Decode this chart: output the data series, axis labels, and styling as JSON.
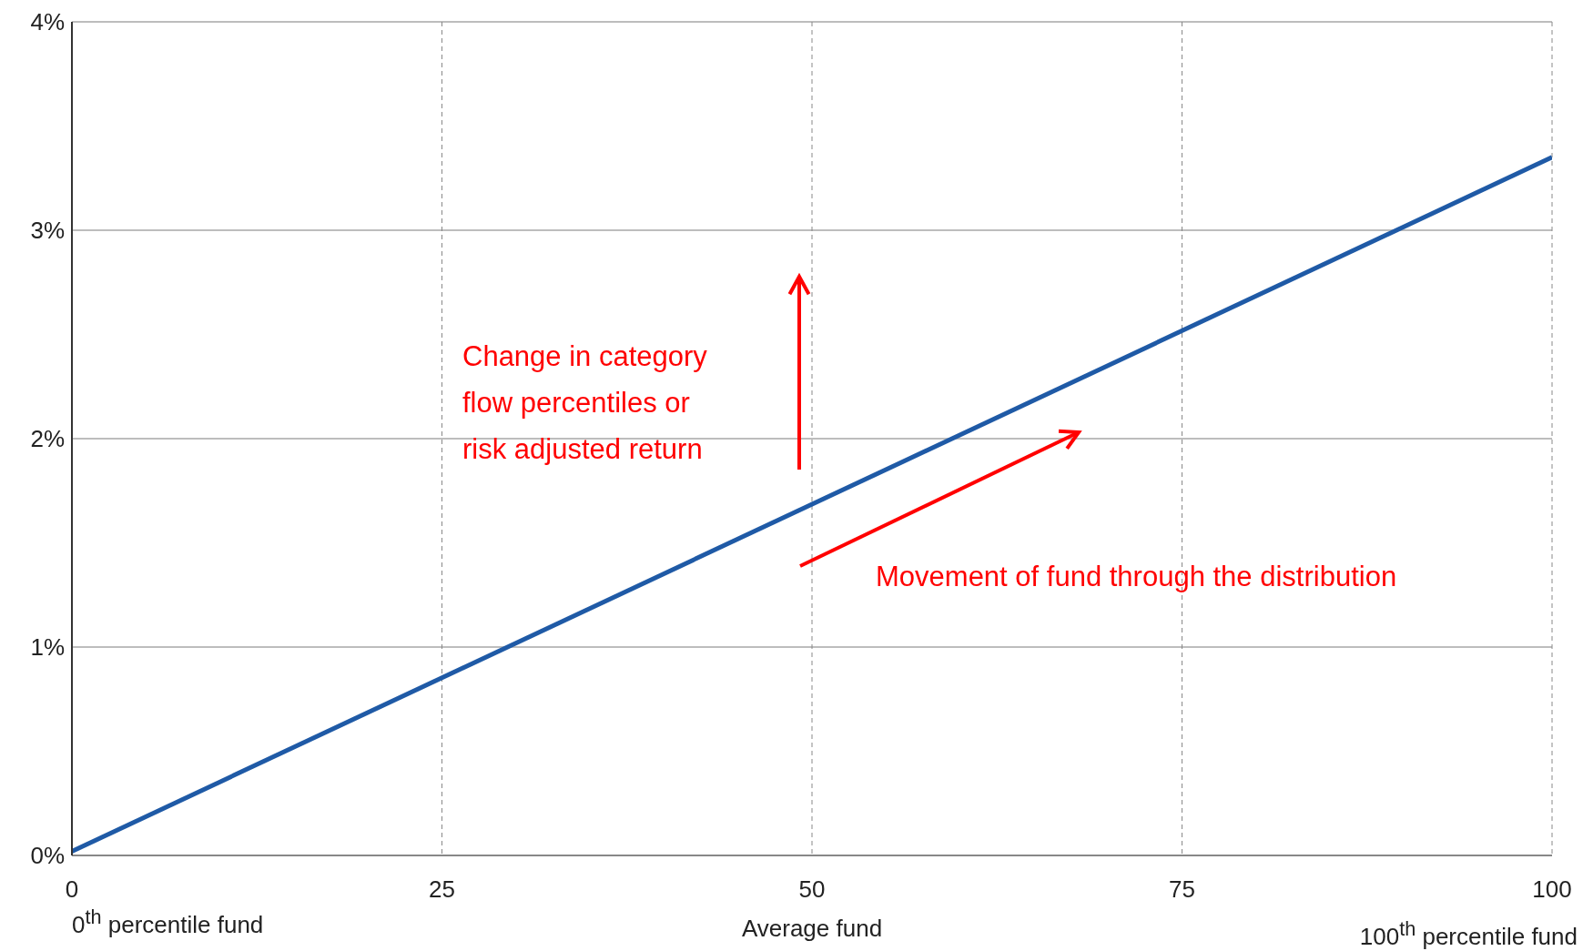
{
  "chart_data": {
    "type": "line",
    "x": [
      0,
      100
    ],
    "series": [
      {
        "color": "#1f5aa6",
        "values": [
          0.02,
          3.35
        ]
      }
    ],
    "xlim": [
      0,
      100
    ],
    "xticks": [
      0,
      25,
      50,
      75,
      100
    ],
    "ylim": [
      0,
      4
    ],
    "yticks": [
      {
        "value": 0,
        "label": "0%"
      },
      {
        "value": 1,
        "label": "1%"
      },
      {
        "value": 2,
        "label": "2%"
      },
      {
        "value": 3,
        "label": "3%"
      },
      {
        "value": 4,
        "label": "4%"
      }
    ],
    "grid": true,
    "legend": false,
    "marker": "none",
    "line_style": "solid",
    "annotations": [
      "Change in category flow percentiles or risk adjusted return",
      "Movement of fund through the distribution",
      "0$^{th}$ percentile fund",
      "Average fund",
      "100$^{th}$ percentile fund"
    ]
  }
}
